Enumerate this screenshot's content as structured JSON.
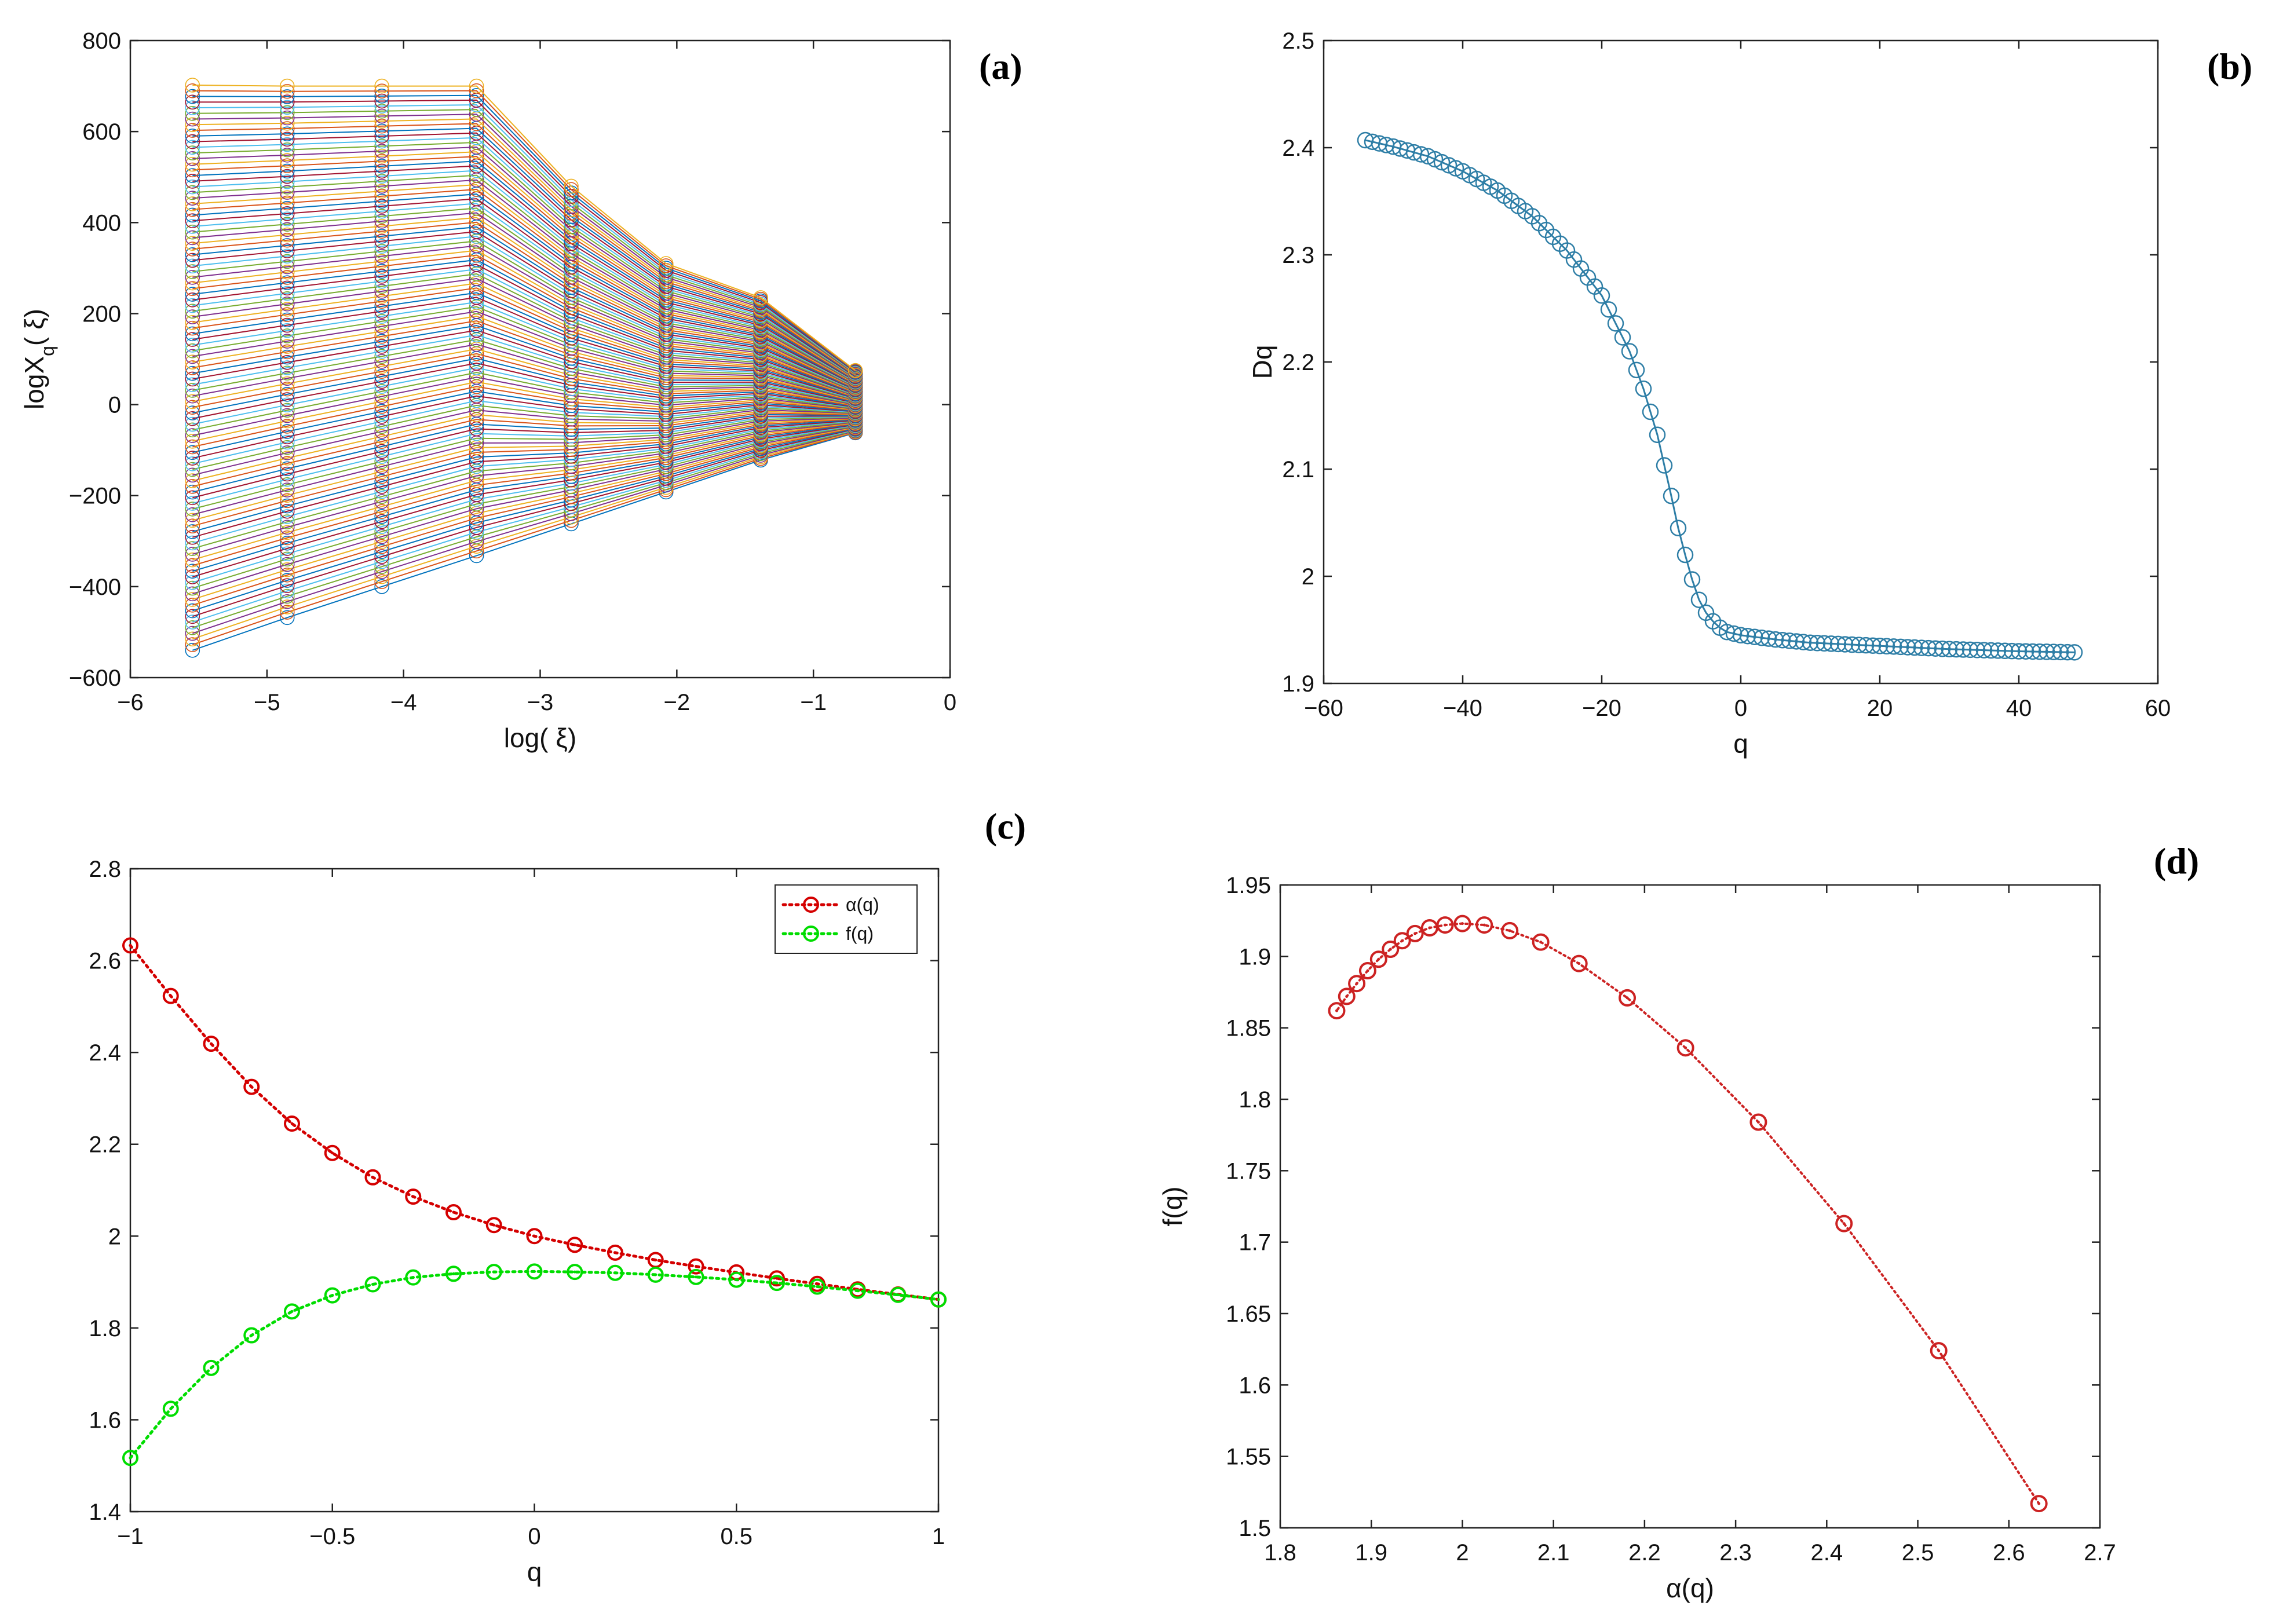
{
  "panels": {
    "a": "(a)",
    "b": "(b)",
    "c": "(c)",
    "d": "(d)"
  },
  "chart_data": [
    {
      "id": "a",
      "type": "line",
      "xlabel": "log( ξ)",
      "ylabel": "logX_q( ξ)",
      "xlim": [
        -6,
        0
      ],
      "ylim": [
        -600,
        800
      ],
      "xticks": [
        "−6",
        "−5",
        "−4",
        "−3",
        "−2",
        "−1",
        "0"
      ],
      "yticks": [
        "−600",
        "−400",
        "−200",
        "0",
        "200",
        "400",
        "600",
        "800"
      ],
      "x": [
        -5.545,
        -4.852,
        -4.159,
        -3.466,
        -2.773,
        -2.079,
        -1.386,
        -0.693
      ],
      "series_count": 101,
      "top_series": [
        702,
        700,
        700,
        700,
        480,
        310,
        235,
        75
      ],
      "bottom_series": [
        -540,
        -468,
        -400,
        -332,
        -262,
        -192,
        -122,
        -62
      ],
      "grid": false,
      "legend": "none"
    },
    {
      "id": "b",
      "type": "line",
      "xlabel": "q",
      "ylabel": "Dq",
      "xlim": [
        -60,
        60
      ],
      "ylim": [
        1.9,
        2.5
      ],
      "xticks": [
        "−60",
        "−40",
        "−20",
        "0",
        "20",
        "40",
        "60"
      ],
      "yticks": [
        "1.9",
        "2",
        "2.1",
        "2.2",
        "2.3",
        "2.4",
        "2.5"
      ],
      "q_range": [
        -54,
        48
      ],
      "curve_points": [
        [
          -54,
          2.407
        ],
        [
          -50,
          2.401
        ],
        [
          -45,
          2.392
        ],
        [
          -40,
          2.378
        ],
        [
          -35,
          2.36
        ],
        [
          -30,
          2.336
        ],
        [
          -25,
          2.304
        ],
        [
          -20,
          2.262
        ],
        [
          -16,
          2.21
        ],
        [
          -14,
          2.175
        ],
        [
          -12,
          2.132
        ],
        [
          -10,
          2.075
        ],
        [
          -9,
          2.045
        ],
        [
          -8,
          2.02
        ],
        [
          -7,
          1.997
        ],
        [
          -6,
          1.978
        ],
        [
          -5,
          1.966
        ],
        [
          -4,
          1.958
        ],
        [
          -3,
          1.952
        ],
        [
          -2,
          1.948
        ],
        [
          0,
          1.945
        ],
        [
          5,
          1.941
        ],
        [
          10,
          1.938
        ],
        [
          20,
          1.935
        ],
        [
          30,
          1.932
        ],
        [
          40,
          1.93
        ],
        [
          48,
          1.929
        ]
      ],
      "marker": "circle",
      "color": "#2E7EA6",
      "grid": false,
      "legend": "none"
    },
    {
      "id": "c",
      "type": "line",
      "xlabel": "q",
      "ylabel": "",
      "xlim": [
        -1,
        1
      ],
      "ylim": [
        1.4,
        2.8
      ],
      "xticks": [
        "−1",
        "−0.5",
        "0",
        "0.5",
        "1"
      ],
      "yticks": [
        "1.4",
        "1.6",
        "1.8",
        "2",
        "2.2",
        "2.4",
        "2.6",
        "2.8"
      ],
      "x": [
        -1,
        -0.9,
        -0.8,
        -0.7,
        -0.6,
        -0.5,
        -0.4,
        -0.3,
        -0.2,
        -0.1,
        0,
        0.1,
        0.2,
        0.3,
        0.4,
        0.5,
        0.6,
        0.7,
        0.8,
        0.9,
        1
      ],
      "series": [
        {
          "name": "α(q)",
          "color": "#d40000",
          "values": [
            2.633,
            2.523,
            2.419,
            2.325,
            2.245,
            2.181,
            2.128,
            2.086,
            2.052,
            2.024,
            2.0,
            1.981,
            1.964,
            1.948,
            1.934,
            1.921,
            1.908,
            1.896,
            1.884,
            1.873,
            1.862
          ]
        },
        {
          "name": "f(q)",
          "color": "#00dd00",
          "values": [
            1.517,
            1.624,
            1.713,
            1.784,
            1.836,
            1.871,
            1.895,
            1.91,
            1.918,
            1.922,
            1.923,
            1.922,
            1.92,
            1.916,
            1.911,
            1.905,
            1.898,
            1.89,
            1.881,
            1.872,
            1.862
          ]
        }
      ],
      "legend": "top-right",
      "grid": false
    },
    {
      "id": "d",
      "type": "line",
      "xlabel": "α(q)",
      "ylabel": "f(q)",
      "xlim": [
        1.8,
        2.7
      ],
      "ylim": [
        1.5,
        1.95
      ],
      "xticks": [
        "1.8",
        "1.9",
        "2",
        "2.1",
        "2.2",
        "2.3",
        "2.4",
        "2.5",
        "2.6",
        "2.7"
      ],
      "yticks": [
        "1.5",
        "1.55",
        "1.6",
        "1.65",
        "1.7",
        "1.75",
        "1.8",
        "1.85",
        "1.9",
        "1.95"
      ],
      "x": [
        2.633,
        2.523,
        2.419,
        2.325,
        2.245,
        2.181,
        2.128,
        2.086,
        2.052,
        2.024,
        2.0,
        1.981,
        1.964,
        1.948,
        1.934,
        1.921,
        1.908,
        1.896,
        1.884,
        1.873,
        1.862
      ],
      "y": [
        1.517,
        1.624,
        1.713,
        1.784,
        1.836,
        1.871,
        1.895,
        1.91,
        1.918,
        1.922,
        1.923,
        1.922,
        1.92,
        1.916,
        1.911,
        1.905,
        1.898,
        1.89,
        1.881,
        1.872,
        1.862
      ],
      "color": "#cc2222",
      "grid": false,
      "legend": "none"
    }
  ]
}
